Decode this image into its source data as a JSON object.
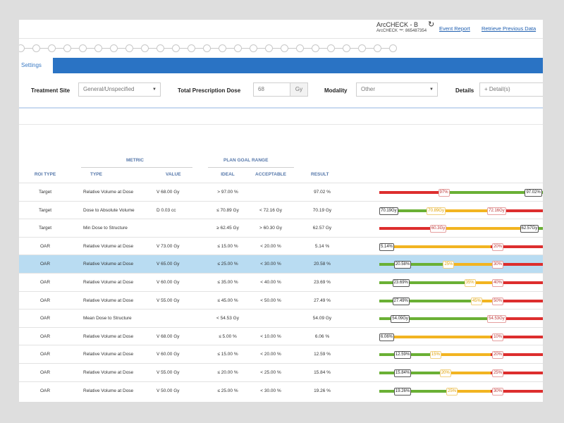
{
  "header": {
    "device_name": "ArcCHECK - B",
    "device_serial": "ArcCHECK ™: 865487354",
    "links": [
      "Event Report",
      "Retrieve Previous Data"
    ]
  },
  "stepper": {
    "step_count": 25
  },
  "tabs": [
    {
      "label": "Settings",
      "active": true
    }
  ],
  "settings": {
    "treatment_site": {
      "label": "Treatment Site",
      "value": "General/Unspecified"
    },
    "total_prescription_dose": {
      "label": "Total Prescription Dose",
      "value": "68",
      "unit": "Gy"
    },
    "modality": {
      "label": "Modality",
      "value": "Other"
    },
    "details": {
      "label": "Details",
      "placeholder": "+ Detail(s)"
    }
  },
  "table": {
    "group_headers": {
      "metric": "METRIC",
      "plan_goal_range": "PLAN GOAL RANGE"
    },
    "columns": [
      "ROI TYPE",
      "TYPE",
      "VALUE",
      "IDEAL",
      "ACCEPTABLE",
      "RESULT"
    ],
    "rows": [
      {
        "roi": "Target",
        "type": "Relative Volume at Dose",
        "value": "V 68.00 Gy",
        "ideal": "> 97.00 %",
        "acceptable": "",
        "result": "97.02 %",
        "selected": false,
        "segments": [
          {
            "c": "r",
            "w": 0.4
          },
          {
            "c": "g",
            "w": 0.6
          }
        ],
        "tags": [
          {
            "text": "97%",
            "pos": 0.36,
            "style": "light"
          },
          {
            "text": "97.02%",
            "pos": 0.89,
            "style": "dark"
          }
        ]
      },
      {
        "roi": "Target",
        "type": "Dose to Absolute Volume",
        "value": "D 0.03 cc",
        "ideal": "≤ 70.89 Gy",
        "acceptable": "< 72.16 Gy",
        "result": "70.19 Gy",
        "selected": false,
        "segments": [
          {
            "c": "g",
            "w": 0.32
          },
          {
            "c": "y",
            "w": 0.38
          },
          {
            "c": "r",
            "w": 0.3
          }
        ],
        "tags": [
          {
            "text": "70.19Gy",
            "pos": 0.0,
            "style": "dark"
          },
          {
            "text": "70.89Gy",
            "pos": 0.29,
            "style": "ylw"
          },
          {
            "text": "72.16Gy",
            "pos": 0.66,
            "style": "light"
          }
        ]
      },
      {
        "roi": "Target",
        "type": "Min Dose to Structure",
        "value": "",
        "ideal": "≥ 62.45 Gy",
        "acceptable": "> 60.30 Gy",
        "result": "62.57 Gy",
        "selected": false,
        "segments": [
          {
            "c": "r",
            "w": 0.34
          },
          {
            "c": "y",
            "w": 0.54
          },
          {
            "c": "g",
            "w": 0.12
          }
        ],
        "tags": [
          {
            "text": "60.3Gy",
            "pos": 0.31,
            "style": "light"
          },
          {
            "text": "62.57Gy",
            "pos": 0.86,
            "style": "dark"
          }
        ]
      },
      {
        "roi": "OAR",
        "type": "Relative Volume at Dose",
        "value": "V 73.00 Gy",
        "ideal": "≤ 15.00 %",
        "acceptable": "< 20.00 %",
        "result": "5.14 %",
        "selected": false,
        "segments": [
          {
            "c": "g",
            "w": 0.06
          },
          {
            "c": "y",
            "w": 0.62
          },
          {
            "c": "r",
            "w": 0.32
          }
        ],
        "tags": [
          {
            "text": "5.14%",
            "pos": 0.0,
            "style": "dark"
          },
          {
            "text": "20%",
            "pos": 0.69,
            "style": "light"
          }
        ]
      },
      {
        "roi": "OAR",
        "type": "Relative Volume at Dose",
        "value": "V 65.00 Gy",
        "ideal": "≤ 25.00 %",
        "acceptable": "< 30.00 %",
        "result": "20.58 %",
        "selected": true,
        "segments": [
          {
            "c": "g",
            "w": 0.4
          },
          {
            "c": "y",
            "w": 0.29
          },
          {
            "c": "r",
            "w": 0.31
          }
        ],
        "tags": [
          {
            "text": "20.58%",
            "pos": 0.09,
            "style": "dark"
          },
          {
            "text": "25%",
            "pos": 0.39,
            "style": "ylw"
          },
          {
            "text": "30%",
            "pos": 0.69,
            "style": "light"
          }
        ]
      },
      {
        "roi": "OAR",
        "type": "Relative Volume at Dose",
        "value": "V 60.00 Gy",
        "ideal": "≤ 35.00 %",
        "acceptable": "< 40.00 %",
        "result": "23.69 %",
        "selected": false,
        "segments": [
          {
            "c": "g",
            "w": 0.53
          },
          {
            "c": "y",
            "w": 0.16
          },
          {
            "c": "r",
            "w": 0.31
          }
        ],
        "tags": [
          {
            "text": "23.69%",
            "pos": 0.08,
            "style": "dark"
          },
          {
            "text": "35%",
            "pos": 0.52,
            "style": "ylw"
          },
          {
            "text": "40%",
            "pos": 0.69,
            "style": "light"
          }
        ]
      },
      {
        "roi": "OAR",
        "type": "Relative Volume at Dose",
        "value": "V 55.00 Gy",
        "ideal": "≤ 45.00 %",
        "acceptable": "< 50.00 %",
        "result": "27.49 %",
        "selected": false,
        "segments": [
          {
            "c": "g",
            "w": 0.57
          },
          {
            "c": "y",
            "w": 0.12
          },
          {
            "c": "r",
            "w": 0.31
          }
        ],
        "tags": [
          {
            "text": "27.49%",
            "pos": 0.08,
            "style": "dark"
          },
          {
            "text": "45%",
            "pos": 0.56,
            "style": "ylw"
          },
          {
            "text": "50%",
            "pos": 0.69,
            "style": "light"
          }
        ]
      },
      {
        "roi": "OAR",
        "type": "Mean Dose to Structure",
        "value": "",
        "ideal": "< 54.53 Gy",
        "acceptable": "",
        "result": "54.09 Gy",
        "selected": false,
        "segments": [
          {
            "c": "g",
            "w": 0.68
          },
          {
            "c": "r",
            "w": 0.32
          }
        ],
        "tags": [
          {
            "text": "54.09Gy",
            "pos": 0.07,
            "style": "dark"
          },
          {
            "text": "54.53Gy",
            "pos": 0.66,
            "style": "light"
          }
        ]
      },
      {
        "roi": "OAR",
        "type": "Relative Volume at Dose",
        "value": "V 68.00 Gy",
        "ideal": "≤ 5.00 %",
        "acceptable": "< 10.00 %",
        "result": "6.06 %",
        "selected": false,
        "segments": [
          {
            "c": "y",
            "w": 0.68
          },
          {
            "c": "r",
            "w": 0.32
          }
        ],
        "tags": [
          {
            "text": "6.06%",
            "pos": 0.0,
            "style": "dark"
          },
          {
            "text": "10%",
            "pos": 0.69,
            "style": "light"
          }
        ]
      },
      {
        "roi": "OAR",
        "type": "Relative Volume at Dose",
        "value": "V 60.00 Gy",
        "ideal": "≤ 15.00 %",
        "acceptable": "< 20.00 %",
        "result": "12.59 %",
        "selected": false,
        "segments": [
          {
            "c": "g",
            "w": 0.33
          },
          {
            "c": "y",
            "w": 0.35
          },
          {
            "c": "r",
            "w": 0.32
          }
        ],
        "tags": [
          {
            "text": "12.59%",
            "pos": 0.09,
            "style": "dark"
          },
          {
            "text": "15%",
            "pos": 0.31,
            "style": "ylw"
          },
          {
            "text": "20%",
            "pos": 0.69,
            "style": "light"
          }
        ]
      },
      {
        "roi": "OAR",
        "type": "Relative Volume at Dose",
        "value": "V 55.00 Gy",
        "ideal": "≤ 20.00 %",
        "acceptable": "< 25.00 %",
        "result": "15.84 %",
        "selected": false,
        "segments": [
          {
            "c": "g",
            "w": 0.38
          },
          {
            "c": "y",
            "w": 0.3
          },
          {
            "c": "r",
            "w": 0.32
          }
        ],
        "tags": [
          {
            "text": "15.84%",
            "pos": 0.09,
            "style": "dark"
          },
          {
            "text": "20%",
            "pos": 0.37,
            "style": "ylw"
          },
          {
            "text": "25%",
            "pos": 0.69,
            "style": "light"
          }
        ]
      },
      {
        "roi": "OAR",
        "type": "Relative Volume at Dose",
        "value": "V 50.00 Gy",
        "ideal": "≤ 25.00 %",
        "acceptable": "< 30.00 %",
        "result": "19.26 %",
        "selected": false,
        "segments": [
          {
            "c": "g",
            "w": 0.43
          },
          {
            "c": "y",
            "w": 0.25
          },
          {
            "c": "r",
            "w": 0.32
          }
        ],
        "tags": [
          {
            "text": "19.26%",
            "pos": 0.09,
            "style": "dark"
          },
          {
            "text": "25%",
            "pos": 0.41,
            "style": "ylw"
          },
          {
            "text": "30%",
            "pos": 0.69,
            "style": "light"
          }
        ]
      }
    ]
  }
}
